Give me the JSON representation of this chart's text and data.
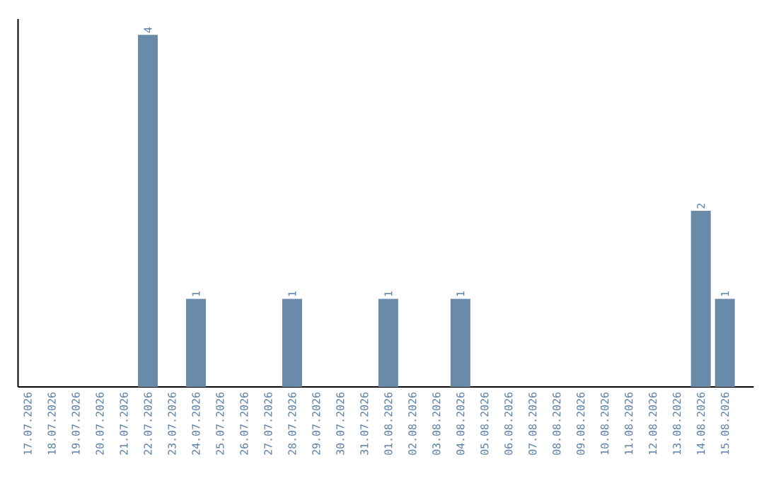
{
  "chart_data": {
    "type": "bar",
    "color": "#6a8aaa",
    "categories": [
      "17.07.2026",
      "18.07.2026",
      "19.07.2026",
      "20.07.2026",
      "21.07.2026",
      "22.07.2026",
      "23.07.2026",
      "24.07.2026",
      "25.07.2026",
      "26.07.2026",
      "27.07.2026",
      "28.07.2026",
      "29.07.2026",
      "30.07.2026",
      "31.07.2026",
      "01.08.2026",
      "02.08.2026",
      "03.08.2026",
      "04.08.2026",
      "05.08.2026",
      "06.08.2026",
      "07.08.2026",
      "08.08.2026",
      "09.08.2026",
      "10.08.2026",
      "11.08.2026",
      "12.08.2026",
      "13.08.2026",
      "14.08.2026",
      "15.08.2026"
    ],
    "values": [
      0,
      0,
      0,
      0,
      0,
      4,
      0,
      1,
      0,
      0,
      0,
      1,
      0,
      0,
      0,
      1,
      0,
      0,
      1,
      0,
      0,
      0,
      0,
      0,
      0,
      0,
      0,
      0,
      2,
      1
    ],
    "value_labels": [
      null,
      null,
      null,
      null,
      null,
      "4",
      null,
      "1",
      null,
      null,
      null,
      "1",
      null,
      null,
      null,
      "1",
      null,
      null,
      "1",
      null,
      null,
      null,
      null,
      null,
      null,
      null,
      null,
      null,
      "2",
      "1"
    ],
    "grid": false
  }
}
